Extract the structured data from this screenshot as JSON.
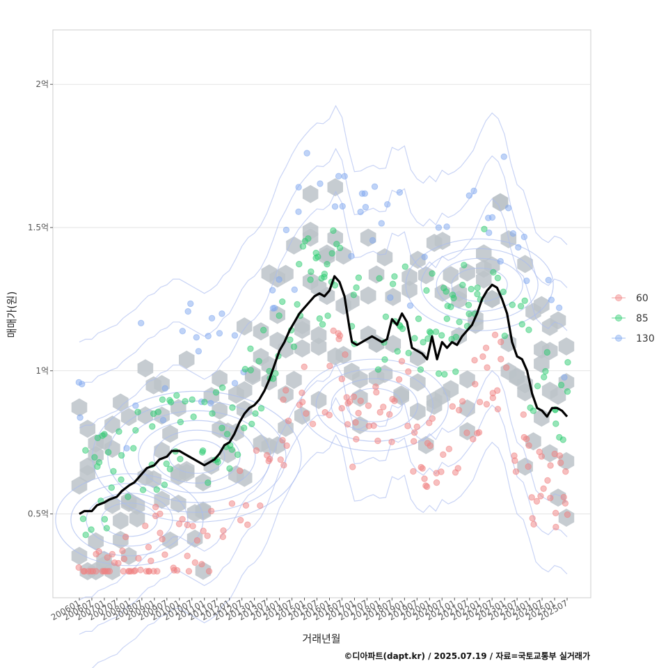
{
  "chart_data": {
    "type": "scatter",
    "xlabel": "거래년월",
    "ylabel": "매매가(원)",
    "caption": "©디아파트(dapt.kr) / 2025.07.19 / 자료=국토교통부 실거래가",
    "x_tick_labels": [
      "200601",
      "200607",
      "200701",
      "200707",
      "200801",
      "200807",
      "200901",
      "200907",
      "201001",
      "201007",
      "201101",
      "201107",
      "201201",
      "201207",
      "201301",
      "201307",
      "201401",
      "201407",
      "201501",
      "201507",
      "201601",
      "201607",
      "201701",
      "201707",
      "201801",
      "201807",
      "201901",
      "201907",
      "202001",
      "202007",
      "202101",
      "202107",
      "202201",
      "202207",
      "202301",
      "202307",
      "202401",
      "202407",
      "202501",
      "202507"
    ],
    "y_tick_labels": [
      "0.5억",
      "1억",
      "1.5억",
      "2억"
    ],
    "y_tick_values": [
      0.5,
      1.0,
      1.5,
      2.0
    ],
    "xlim": [
      2005.6,
      2025.9
    ],
    "ylim": [
      0.21,
      2.2
    ],
    "grid": true,
    "legend_position": "right",
    "series": [
      {
        "name": "60",
        "color": "#f08080"
      },
      {
        "name": "85",
        "color": "#2ecc71"
      },
      {
        "name": "130",
        "color": "#7fa8ef"
      }
    ],
    "trend_line": {
      "color": "#000000",
      "points": [
        [
          2006.0,
          0.5
        ],
        [
          2006.2,
          0.51
        ],
        [
          2006.5,
          0.51
        ],
        [
          2006.7,
          0.53
        ],
        [
          2007.0,
          0.54
        ],
        [
          2007.2,
          0.55
        ],
        [
          2007.5,
          0.56
        ],
        [
          2007.7,
          0.58
        ],
        [
          2008.0,
          0.6
        ],
        [
          2008.2,
          0.61
        ],
        [
          2008.5,
          0.64
        ],
        [
          2008.7,
          0.66
        ],
        [
          2009.0,
          0.67
        ],
        [
          2009.2,
          0.69
        ],
        [
          2009.5,
          0.7
        ],
        [
          2009.7,
          0.72
        ],
        [
          2010.0,
          0.72
        ],
        [
          2010.2,
          0.71
        ],
        [
          2010.4,
          0.7
        ],
        [
          2010.6,
          0.69
        ],
        [
          2010.8,
          0.68
        ],
        [
          2011.0,
          0.67
        ],
        [
          2011.2,
          0.68
        ],
        [
          2011.4,
          0.69
        ],
        [
          2011.6,
          0.71
        ],
        [
          2011.8,
          0.74
        ],
        [
          2012.0,
          0.75
        ],
        [
          2012.2,
          0.78
        ],
        [
          2012.4,
          0.82
        ],
        [
          2012.6,
          0.85
        ],
        [
          2012.8,
          0.87
        ],
        [
          2013.0,
          0.88
        ],
        [
          2013.2,
          0.9
        ],
        [
          2013.4,
          0.93
        ],
        [
          2013.6,
          0.97
        ],
        [
          2013.8,
          1.02
        ],
        [
          2014.0,
          1.07
        ],
        [
          2014.2,
          1.1
        ],
        [
          2014.4,
          1.14
        ],
        [
          2014.6,
          1.17
        ],
        [
          2014.8,
          1.2
        ],
        [
          2015.0,
          1.22
        ],
        [
          2015.2,
          1.24
        ],
        [
          2015.4,
          1.26
        ],
        [
          2015.6,
          1.27
        ],
        [
          2015.8,
          1.26
        ],
        [
          2016.0,
          1.28
        ],
        [
          2016.2,
          1.33
        ],
        [
          2016.4,
          1.31
        ],
        [
          2016.6,
          1.26
        ],
        [
          2016.8,
          1.15
        ],
        [
          2016.9,
          1.1
        ],
        [
          2017.1,
          1.09
        ],
        [
          2017.3,
          1.1
        ],
        [
          2017.5,
          1.11
        ],
        [
          2017.7,
          1.12
        ],
        [
          2017.9,
          1.11
        ],
        [
          2018.1,
          1.1
        ],
        [
          2018.3,
          1.11
        ],
        [
          2018.5,
          1.18
        ],
        [
          2018.7,
          1.16
        ],
        [
          2018.9,
          1.2
        ],
        [
          2019.1,
          1.17
        ],
        [
          2019.3,
          1.08
        ],
        [
          2019.5,
          1.07
        ],
        [
          2019.7,
          1.06
        ],
        [
          2019.9,
          1.04
        ],
        [
          2020.1,
          1.12
        ],
        [
          2020.3,
          1.04
        ],
        [
          2020.5,
          1.1
        ],
        [
          2020.7,
          1.08
        ],
        [
          2020.9,
          1.1
        ],
        [
          2021.1,
          1.09
        ],
        [
          2021.3,
          1.12
        ],
        [
          2021.5,
          1.14
        ],
        [
          2021.7,
          1.16
        ],
        [
          2021.9,
          1.2
        ],
        [
          2022.1,
          1.25
        ],
        [
          2022.3,
          1.28
        ],
        [
          2022.5,
          1.3
        ],
        [
          2022.7,
          1.29
        ],
        [
          2022.9,
          1.25
        ],
        [
          2023.1,
          1.2
        ],
        [
          2023.3,
          1.1
        ],
        [
          2023.5,
          1.05
        ],
        [
          2023.7,
          1.04
        ],
        [
          2023.9,
          1.0
        ],
        [
          2024.1,
          0.92
        ],
        [
          2024.3,
          0.87
        ],
        [
          2024.5,
          0.86
        ],
        [
          2024.7,
          0.84
        ],
        [
          2024.9,
          0.87
        ],
        [
          2025.1,
          0.87
        ],
        [
          2025.3,
          0.86
        ],
        [
          2025.5,
          0.84
        ]
      ]
    }
  }
}
